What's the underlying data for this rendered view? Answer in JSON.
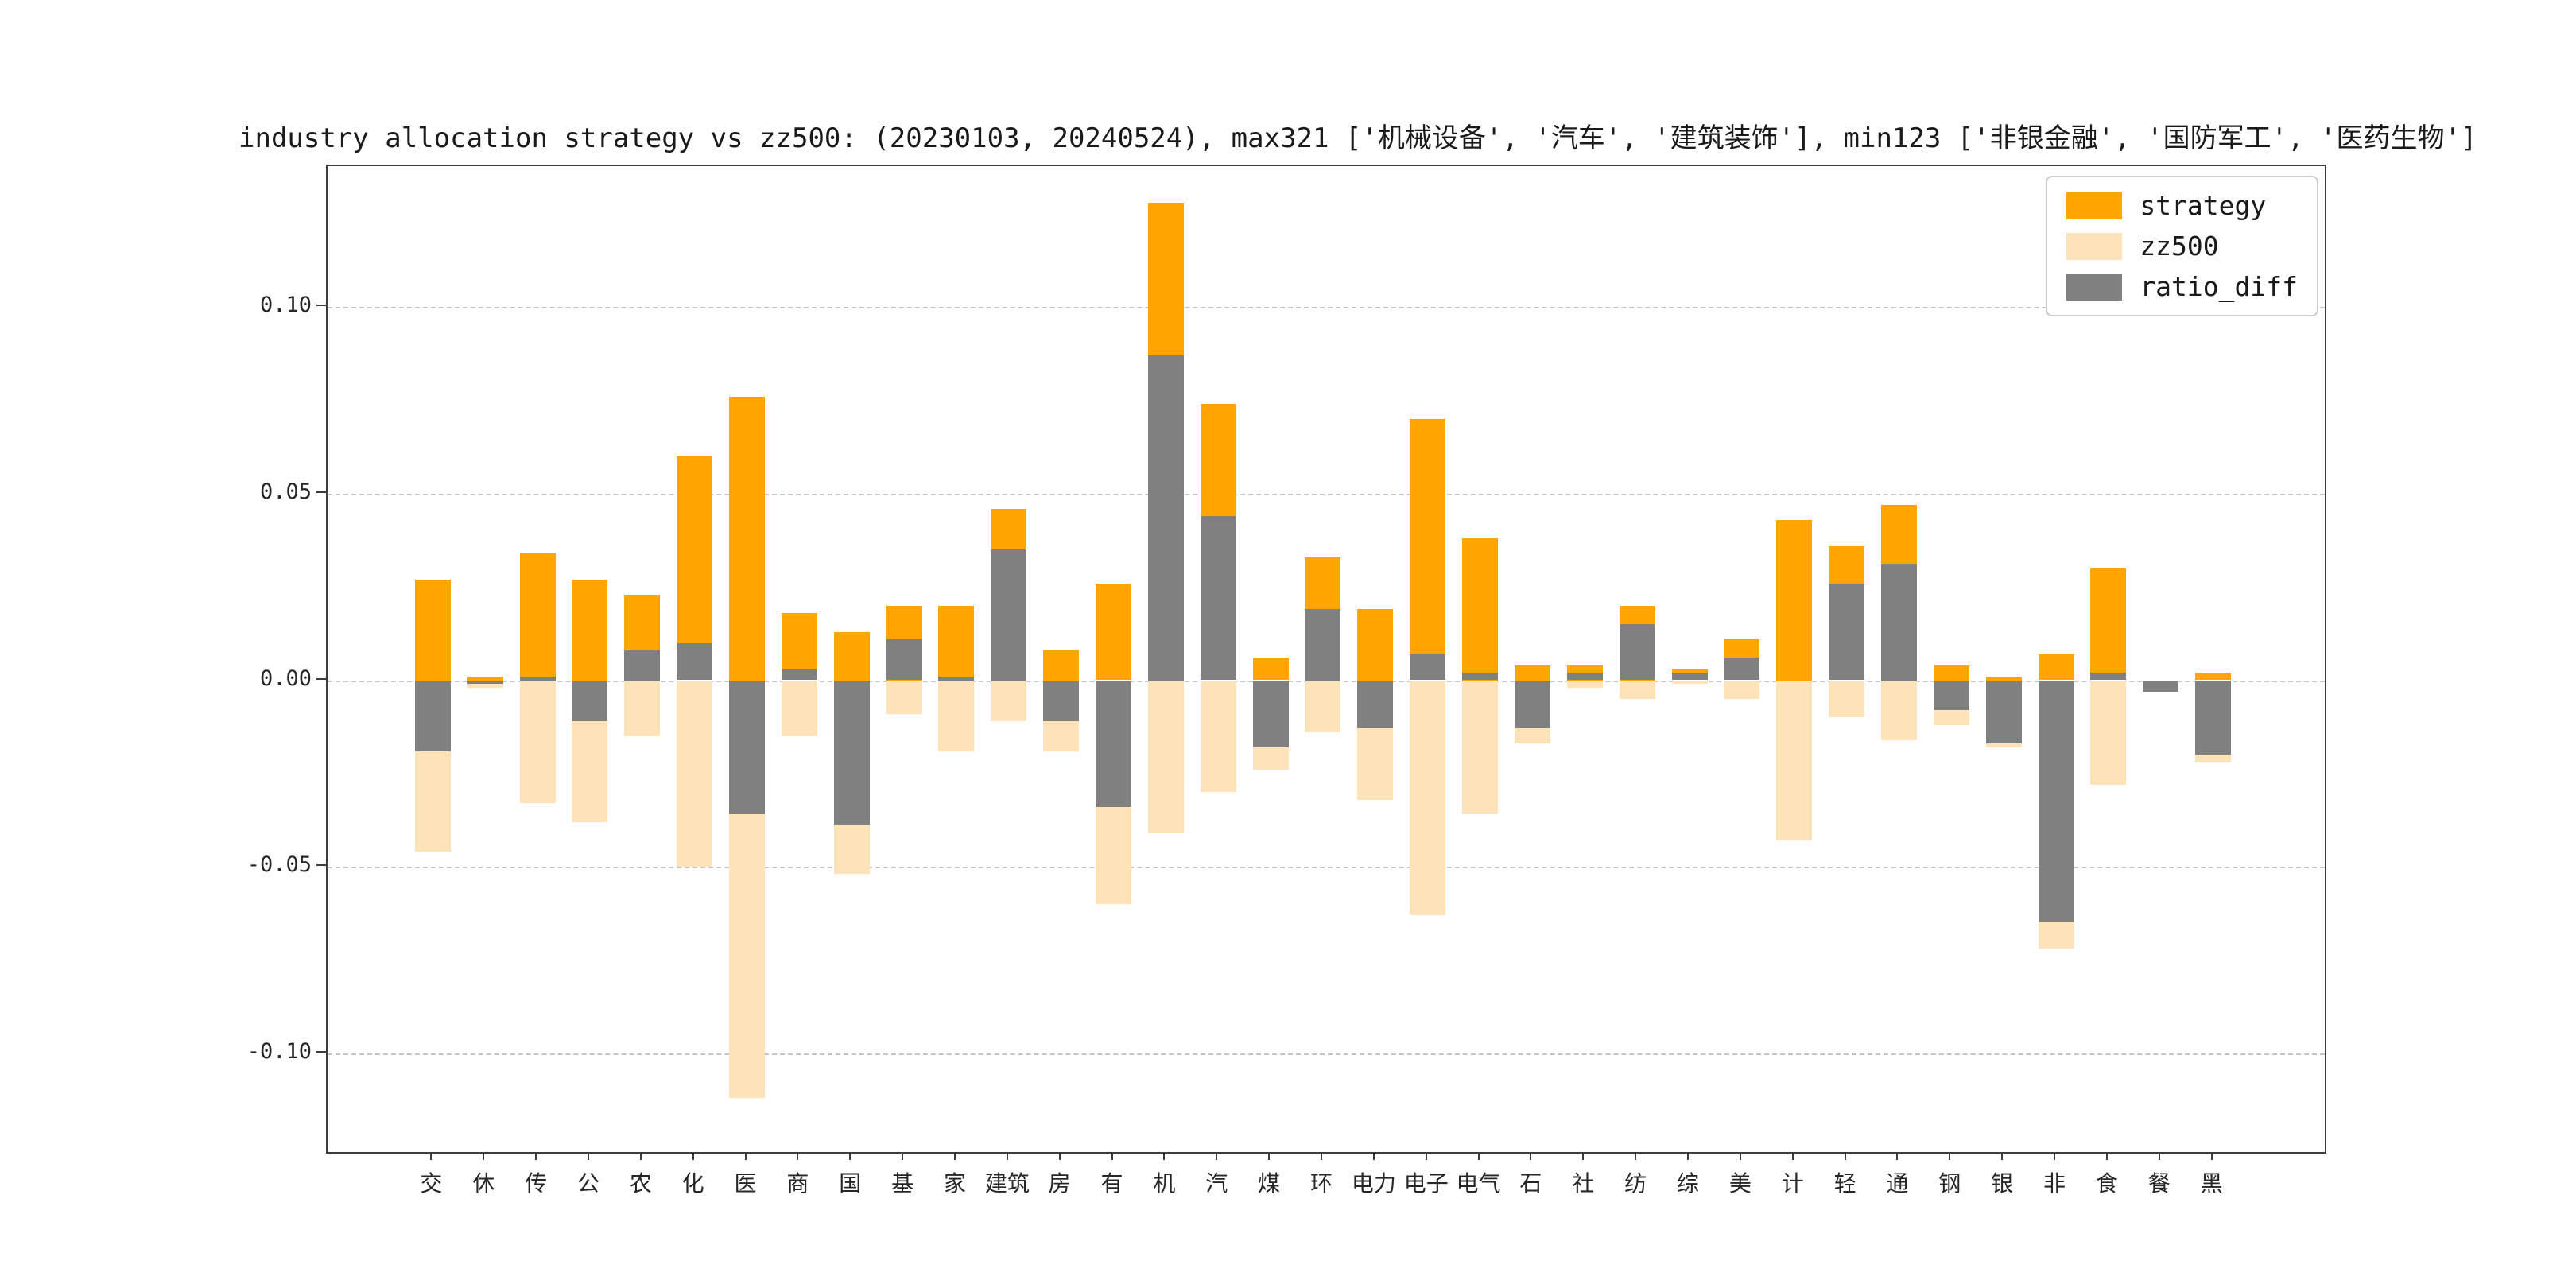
{
  "chart_data": {
    "type": "bar",
    "title": "industry allocation strategy vs zz500: (20230103, 20240524), max321 ['机械设备', '汽车', '建筑装饰'], min123 ['非银金融', '国防军工', '医药生物']",
    "categories": [
      "交",
      "休",
      "传",
      "公",
      "农",
      "化",
      "医",
      "商",
      "国",
      "基",
      "家",
      "建筑",
      "房",
      "有",
      "机",
      "汽",
      "煤",
      "环",
      "电力",
      "电子",
      "电气",
      "石",
      "社",
      "纺",
      "综",
      "美",
      "计",
      "轻",
      "通",
      "钢",
      "银",
      "非",
      "食",
      "餐",
      "黑"
    ],
    "series": [
      {
        "name": "strategy",
        "color": "#FFA500",
        "direction": "up",
        "values": [
          0.027,
          0.001,
          0.034,
          0.027,
          0.023,
          0.06,
          0.076,
          0.018,
          0.013,
          0.02,
          0.02,
          0.046,
          0.008,
          0.026,
          0.128,
          0.074,
          0.006,
          0.033,
          0.019,
          0.07,
          0.038,
          0.004,
          0.004,
          0.02,
          0.003,
          0.011,
          0.043,
          0.036,
          0.047,
          0.004,
          0.001,
          0.007,
          0.03,
          0.0,
          0.002
        ]
      },
      {
        "name": "zz500",
        "color": "#FFE3B8",
        "direction": "down",
        "values": [
          0.046,
          0.002,
          0.033,
          0.038,
          0.015,
          0.05,
          0.112,
          0.015,
          0.052,
          0.009,
          0.019,
          0.011,
          0.019,
          0.06,
          0.041,
          0.03,
          0.024,
          0.014,
          0.032,
          0.063,
          0.036,
          0.017,
          0.002,
          0.005,
          0.001,
          0.005,
          0.043,
          0.01,
          0.016,
          0.012,
          0.018,
          0.072,
          0.028,
          0.003,
          0.022
        ]
      },
      {
        "name": "ratio_diff",
        "color": "#808080",
        "direction": "signed",
        "values": [
          -0.019,
          -0.001,
          0.001,
          -0.011,
          0.008,
          0.01,
          -0.036,
          0.003,
          -0.039,
          0.011,
          0.001,
          0.035,
          -0.011,
          -0.034,
          0.087,
          0.044,
          -0.018,
          0.019,
          -0.013,
          0.007,
          0.002,
          -0.013,
          0.002,
          0.015,
          0.002,
          0.006,
          0.0,
          0.026,
          0.031,
          -0.008,
          -0.017,
          -0.065,
          0.002,
          -0.003,
          -0.02
        ]
      }
    ],
    "yticks": [
      0.1,
      0.05,
      0.0,
      -0.05,
      -0.1
    ],
    "ytick_labels": [
      "0.10",
      "0.05",
      "0.00",
      "-0.05",
      "-0.10"
    ],
    "ylim": [
      -0.1265,
      0.1378
    ],
    "grid": "horizontal dashed gridlines at y ticks",
    "legend_position": "upper right",
    "legend_entries": [
      "strategy",
      "zz500",
      "ratio_diff"
    ]
  }
}
